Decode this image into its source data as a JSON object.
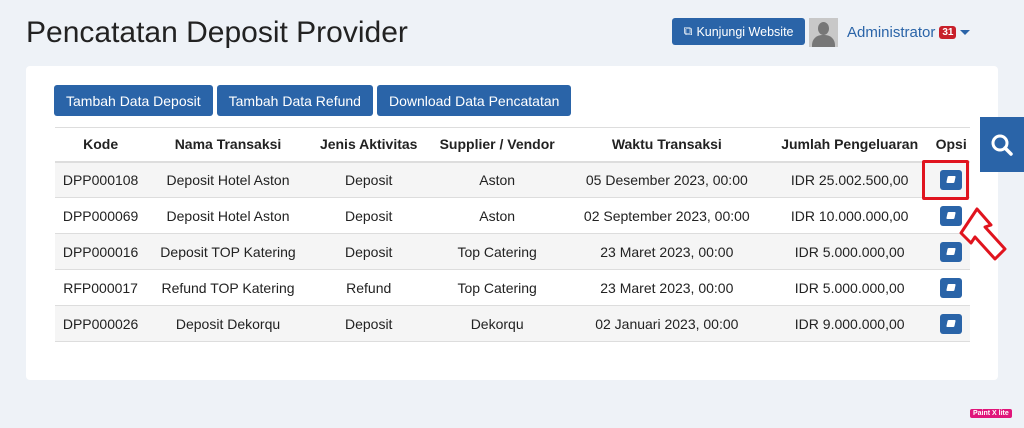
{
  "page_title": "Pencatatan Deposit Provider",
  "header": {
    "visit_label": "Kunjungi Website",
    "user": "Administrator",
    "notif_count": "31"
  },
  "actions": {
    "add_deposit": "Tambah Data Deposit",
    "add_refund": "Tambah Data Refund",
    "download": "Download Data Pencatatan"
  },
  "table": {
    "headers": [
      "Kode",
      "Nama Transaksi",
      "Jenis Aktivitas",
      "Supplier / Vendor",
      "Waktu Transaksi",
      "Jumlah Pengeluaran",
      "Opsi"
    ],
    "rows": [
      [
        "DPP000108",
        "Deposit Hotel Aston",
        "Deposit",
        "Aston",
        "05 Desember 2023, 00:00",
        "IDR 25.002.500,00"
      ],
      [
        "DPP000069",
        "Deposit Hotel Aston",
        "Deposit",
        "Aston",
        "02 September 2023, 00:00",
        "IDR 10.000.000,00"
      ],
      [
        "DPP000016",
        "Deposit TOP Katering",
        "Deposit",
        "Top Catering",
        "23 Maret 2023, 00:00",
        "IDR 5.000.000,00"
      ],
      [
        "RFP000017",
        "Refund TOP Katering",
        "Refund",
        "Top Catering",
        "23 Maret 2023, 00:00",
        "IDR 5.000.000,00"
      ],
      [
        "DPP000026",
        "Deposit Dekorqu",
        "Deposit",
        "Dekorqu",
        "02 Januari 2023, 00:00",
        "IDR 9.000.000,00"
      ]
    ]
  },
  "watermark": "Paint X lite",
  "colors": {
    "primary": "#2a64a8",
    "badge": "#c8202a",
    "highlight": "#e0141e"
  }
}
